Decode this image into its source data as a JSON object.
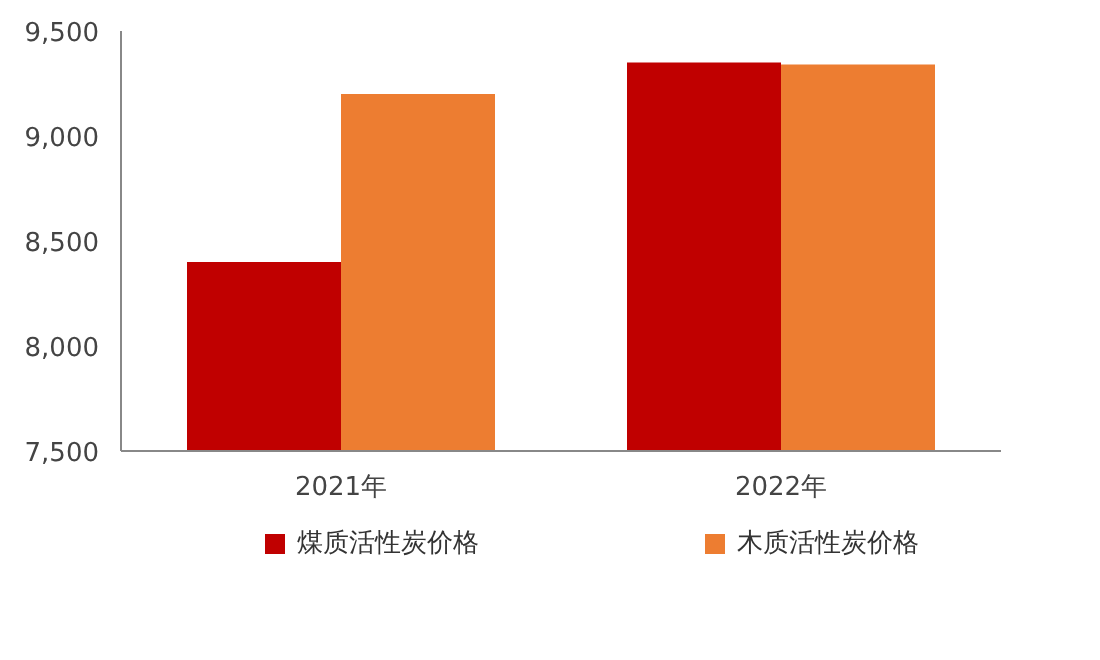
{
  "chart_data": {
    "type": "bar",
    "categories": [
      "2021年",
      "2022年"
    ],
    "series": [
      {
        "name": "煤质活性炭价格",
        "color": "#c00000",
        "values": [
          8400,
          9350
        ]
      },
      {
        "name": "木质活性炭价格",
        "color": "#ed7d31",
        "values": [
          9200,
          9340
        ]
      }
    ],
    "ylim": [
      7500,
      9500
    ],
    "yticks": [
      {
        "value": 7500,
        "label": "7,500"
      },
      {
        "value": 8000,
        "label": "8,000"
      },
      {
        "value": 8500,
        "label": "8,500"
      },
      {
        "value": 9000,
        "label": "9,000"
      },
      {
        "value": 9500,
        "label": "9,500"
      }
    ],
    "grid": false,
    "legend": "bottom"
  }
}
